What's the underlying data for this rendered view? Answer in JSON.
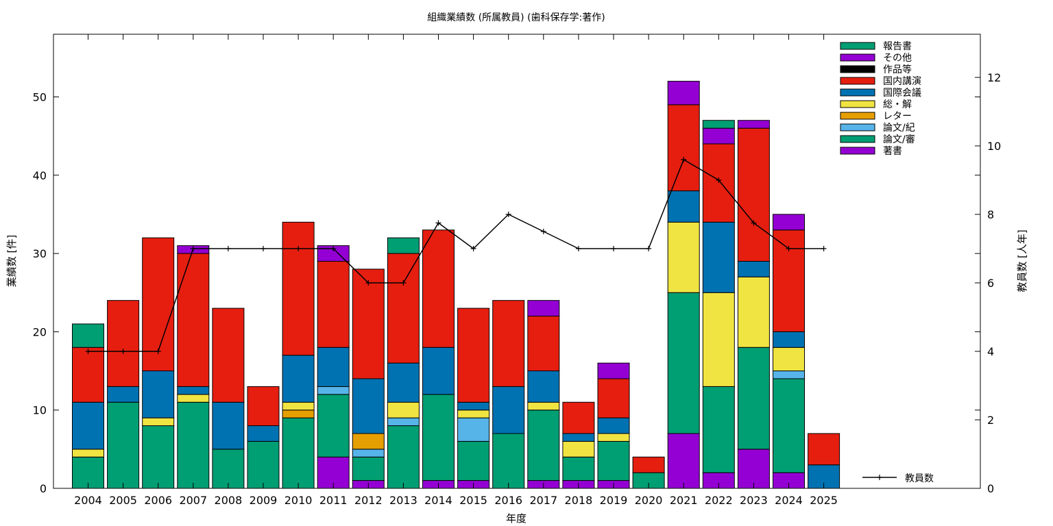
{
  "chart_data": {
    "type": "bar",
    "stacked": true,
    "title": "組織業績数 (所属教員) (歯科保存学:著作)",
    "xlabel": "年度",
    "ylabel": "業績数 [件]",
    "y2label": "教員数 [人年]",
    "ylim": [
      0,
      58
    ],
    "y2lim": [
      0,
      13.26
    ],
    "yticks": [
      0,
      10,
      20,
      30,
      40,
      50
    ],
    "y2ticks": [
      0,
      2,
      4,
      6,
      8,
      10,
      12
    ],
    "grid": false,
    "legend_position": "top-right",
    "categories": [
      "2004",
      "2005",
      "2006",
      "2007",
      "2008",
      "2009",
      "2010",
      "2011",
      "2012",
      "2013",
      "2014",
      "2015",
      "2016",
      "2017",
      "2018",
      "2019",
      "2020",
      "2021",
      "2022",
      "2023",
      "2024",
      "2025"
    ],
    "series": [
      {
        "name": "著書",
        "color": "#9400d3",
        "values": [
          0,
          0,
          0,
          0,
          0,
          0,
          0,
          4,
          1,
          0,
          1,
          1,
          0,
          1,
          1,
          1,
          0,
          7,
          2,
          5,
          2,
          0
        ]
      },
      {
        "name": "論文/審",
        "color": "#009e73",
        "values": [
          4,
          11,
          8,
          11,
          5,
          6,
          9,
          8,
          3,
          8,
          11,
          5,
          7,
          9,
          3,
          5,
          2,
          18,
          11,
          13,
          12,
          0
        ]
      },
      {
        "name": "論文/紀",
        "color": "#56b4e9",
        "values": [
          0,
          0,
          0,
          0,
          0,
          0,
          0,
          1,
          1,
          1,
          0,
          3,
          0,
          0,
          0,
          0,
          0,
          0,
          0,
          0,
          1,
          0
        ]
      },
      {
        "name": "レター",
        "color": "#e69f00",
        "values": [
          0,
          0,
          0,
          0,
          0,
          0,
          1,
          0,
          2,
          0,
          0,
          0,
          0,
          0,
          0,
          0,
          0,
          0,
          0,
          0,
          0,
          0
        ]
      },
      {
        "name": "総・解",
        "color": "#f0e442",
        "values": [
          1,
          0,
          1,
          1,
          0,
          0,
          1,
          0,
          0,
          2,
          0,
          1,
          0,
          1,
          2,
          1,
          0,
          9,
          12,
          9,
          3,
          0
        ]
      },
      {
        "name": "国際会議",
        "color": "#0072b2",
        "values": [
          6,
          2,
          6,
          1,
          6,
          2,
          6,
          5,
          7,
          5,
          6,
          1,
          6,
          4,
          1,
          2,
          0,
          4,
          9,
          2,
          2,
          3
        ]
      },
      {
        "name": "国内講演",
        "color": "#e51e10",
        "values": [
          7,
          11,
          17,
          17,
          12,
          5,
          17,
          11,
          14,
          14,
          15,
          12,
          11,
          7,
          4,
          5,
          2,
          11,
          10,
          17,
          13,
          4
        ]
      },
      {
        "name": "作品等",
        "color": "#000000",
        "values": [
          0,
          0,
          0,
          0,
          0,
          0,
          0,
          0,
          0,
          0,
          0,
          0,
          0,
          0,
          0,
          0,
          0,
          0,
          0,
          0,
          0,
          0
        ]
      },
      {
        "name": "その他",
        "color": "#9400d3",
        "values": [
          0,
          0,
          0,
          1,
          0,
          0,
          0,
          2,
          0,
          0,
          0,
          0,
          0,
          2,
          0,
          2,
          0,
          3,
          2,
          1,
          2,
          0
        ]
      },
      {
        "name": "報告書",
        "color": "#009e73",
        "values": [
          3,
          0,
          0,
          0,
          0,
          0,
          0,
          0,
          0,
          2,
          0,
          0,
          0,
          0,
          0,
          0,
          0,
          0,
          1,
          0,
          0,
          0
        ]
      }
    ],
    "line_series": {
      "name": "教員数",
      "axis": "y2",
      "color": "#000000",
      "values": [
        4,
        4,
        4,
        7,
        7,
        7,
        7,
        7,
        6,
        6,
        7.75,
        7,
        8,
        7.5,
        7,
        7,
        7,
        9.6,
        9,
        7.75,
        7,
        7
      ]
    }
  }
}
